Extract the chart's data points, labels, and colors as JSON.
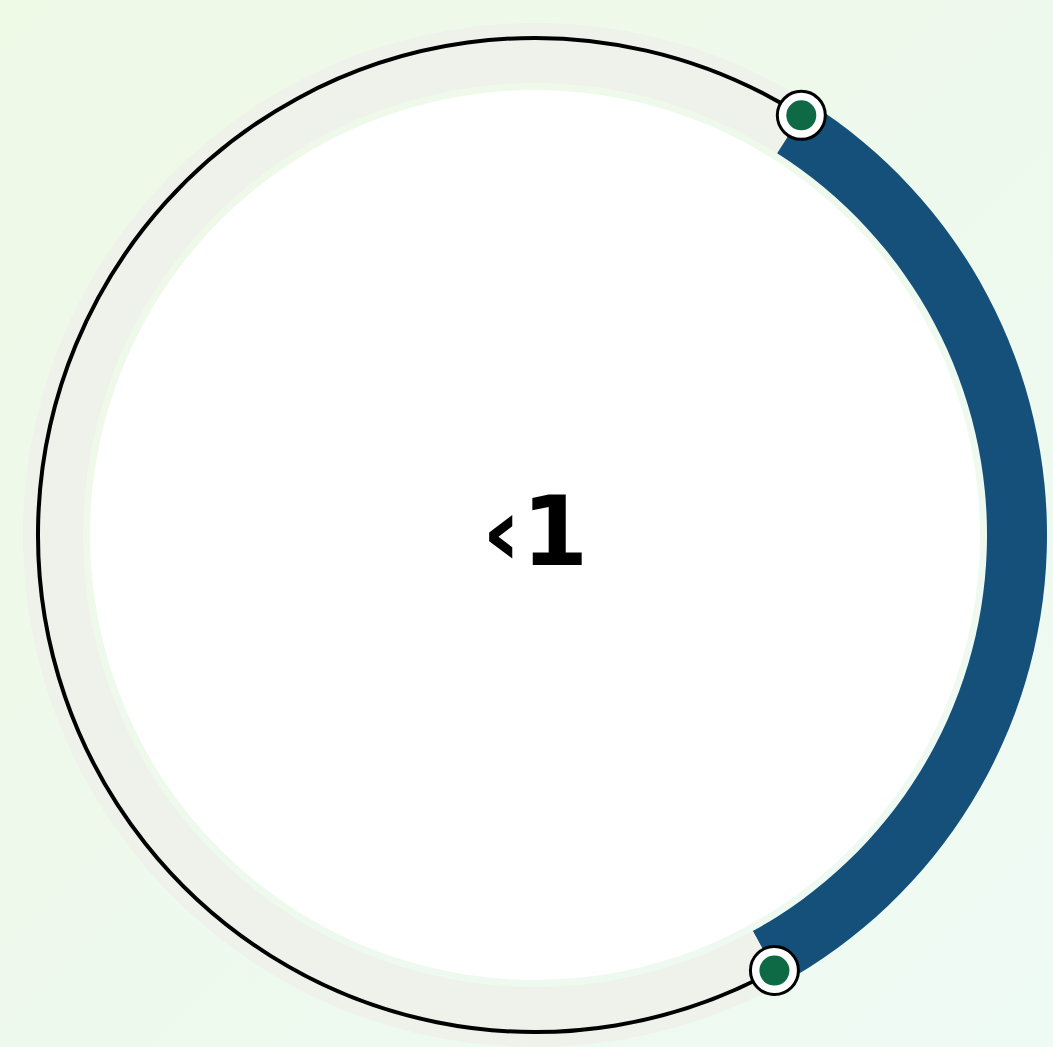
{
  "chart_data": {
    "type": "donut",
    "categories": [
      null,
      null,
      null
    ],
    "values": [
      9,
      33,
      58
    ],
    "colors": [
      "#eef2ea",
      "#14507a",
      "#eef2ea"
    ],
    "annotations": [
      "‹1"
    ]
  }
}
